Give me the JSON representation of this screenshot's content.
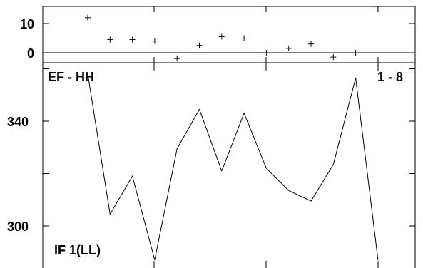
{
  "chart_data": [
    {
      "type": "scatter",
      "panel": "top",
      "title": "",
      "xlabel": "",
      "ylabel": "",
      "ylim": [
        -3.5,
        15
      ],
      "yticks": [
        0,
        10
      ],
      "zero_line": true,
      "x": [
        1,
        2,
        3,
        4,
        5,
        6,
        7,
        8,
        9,
        10,
        11,
        12,
        13,
        14
      ],
      "values": [
        12,
        4.5,
        4.5,
        4,
        -2,
        2.5,
        5.5,
        5,
        0,
        1.5,
        3,
        -1.5,
        0,
        15
      ],
      "marker": "plus"
    },
    {
      "type": "line",
      "panel": "bottom",
      "title": "",
      "xlabel": "",
      "ylabel": "",
      "ylim": [
        286,
        360
      ],
      "yticks": [
        300,
        340
      ],
      "x": [
        1,
        2,
        3,
        4,
        5,
        6,
        7,
        8,
        9,
        10,
        11,
        12,
        13,
        14
      ],
      "values": [
        358,
        304.5,
        319,
        287,
        329.5,
        344.5,
        321,
        343,
        322,
        313.5,
        309.5,
        323.5,
        356.5,
        287
      ]
    }
  ],
  "labels": {
    "top_left": "EF - HH",
    "top_right": "1 - 8",
    "bottom_left": "IF 1(LL)"
  },
  "top_ticks": [
    "10",
    "0"
  ],
  "bottom_ticks": [
    "340",
    "300"
  ]
}
